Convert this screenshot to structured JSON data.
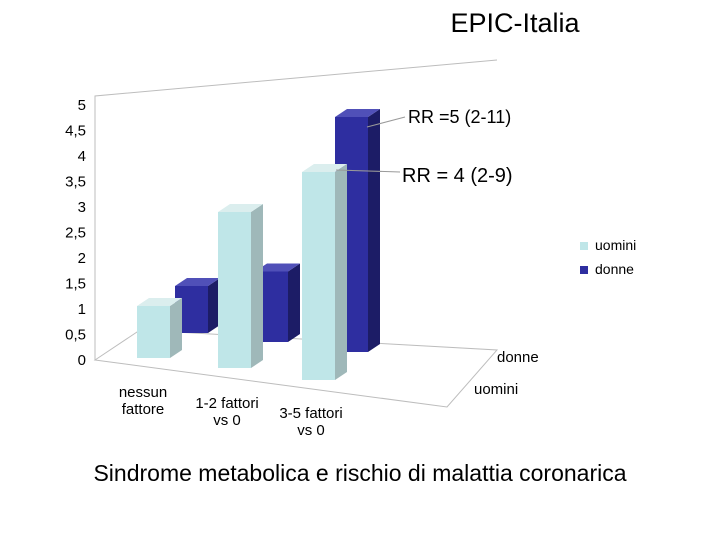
{
  "title": "EPIC-Italia",
  "caption": "Sindrome metabolica e rischio di malattia coronarica",
  "colors": {
    "uomini": "#bfe6e8",
    "uomini_side": "#9fb8b9",
    "uomini_top": "#dbeeee",
    "donne": "#2e2ea0",
    "donne_side": "#1c1c66",
    "donne_top": "#5050b8",
    "grid": "#bdbdbd"
  },
  "chart_data": {
    "type": "bar",
    "3d": true,
    "categories": [
      "nessun fattore",
      "1-2 fattori vs 0",
      "3-5 fattori vs 0"
    ],
    "category_labels": [
      [
        "nessun",
        "fattore"
      ],
      [
        "1-2 fattori",
        "vs 0"
      ],
      [
        "3-5 fattori",
        "vs 0"
      ]
    ],
    "series": [
      {
        "name": "uomini",
        "values": [
          1,
          3,
          4
        ]
      },
      {
        "name": "donne",
        "values": [
          1,
          1.5,
          5
        ]
      }
    ],
    "depth_labels": [
      "donne",
      "uomini"
    ],
    "ylim": [
      0,
      5
    ],
    "yticks": [
      "0",
      "0,5",
      "1",
      "1,5",
      "2",
      "2,5",
      "3",
      "3,5",
      "4",
      "4,5",
      "5"
    ],
    "grid": true,
    "legend": {
      "position": "right",
      "entries": [
        "uomini",
        "donne"
      ]
    },
    "annotations": [
      "RR =5 (2-11)",
      "RR = 4  (2-9)"
    ]
  }
}
